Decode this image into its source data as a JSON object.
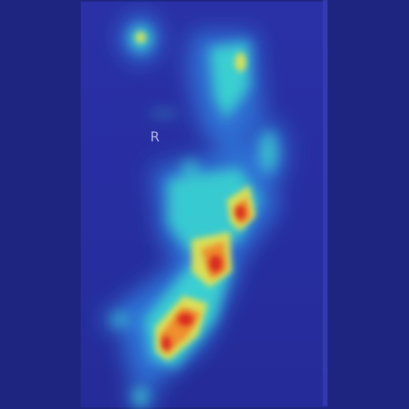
{
  "image": {
    "description_free": true,
    "side_marker": "R",
    "colormap": "jet",
    "palette": {
      "background": "#1e2580",
      "film": "#2a30a6",
      "cyan": "#3ad9d0",
      "yellow": "#e9e34a",
      "orange": "#f08a2c",
      "red": "#d8261f"
    }
  }
}
